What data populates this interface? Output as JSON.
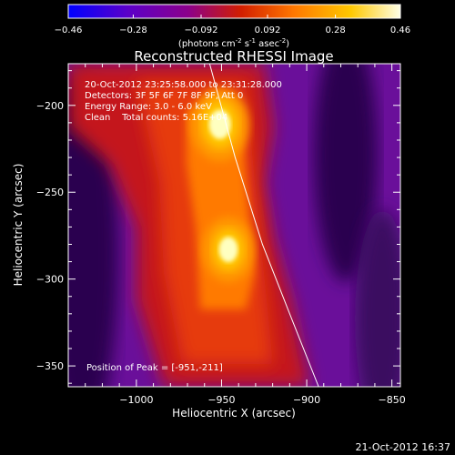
{
  "colorbar": {
    "ticks": [
      "-0.46",
      "-0.28",
      "-0.092",
      "0.092",
      "0.28",
      "0.46"
    ],
    "unit_main": "(photons cm",
    "unit_exp1": "-2",
    "unit_mid": " s",
    "unit_exp2": "-1",
    "unit_mid2": " asec",
    "unit_exp3": "-2",
    "unit_end": ")"
  },
  "annotations": {
    "time_range": "20-Oct-2012 23:25:58.000 to 23:31:28.000",
    "detectors": "Detectors: 3F 5F 6F 7F 8F 9F, Att 0",
    "energy": "Energy Range: 3.0 - 6.0 keV",
    "clean": "Clean    Total counts: 5.16E+04",
    "peak": "Position of Peak = [-951,-211]",
    "date_stamp": "21-Oct-2012 16:37"
  },
  "chart_data": {
    "type": "heatmap",
    "title": "Reconstructed RHESSI Image",
    "xlabel": "Heliocentric X (arcsec)",
    "ylabel": "Heliocentric Y (arcsec)",
    "xlim": [
      -1040,
      -845
    ],
    "ylim": [
      -362,
      -176
    ],
    "x_ticks": [
      -1000,
      -950,
      -900,
      -850
    ],
    "y_ticks": [
      -200,
      -250,
      -300,
      -350
    ],
    "x_tick_labels": [
      "−1000",
      "−950",
      "−900",
      "−850"
    ],
    "y_tick_labels": [
      "−200",
      "−250",
      "−300",
      "−350"
    ],
    "color_range": [
      -0.46,
      0.46
    ],
    "colormap": [
      "#0000ff",
      "#5b00c8",
      "#8b008b",
      "#d21e00",
      "#ff7800",
      "#ffc800",
      "#ffffc8"
    ],
    "sources": [
      {
        "x": -951,
        "y": -211,
        "peak": 0.46
      },
      {
        "x": -946,
        "y": -283,
        "peak": 0.4
      }
    ],
    "limb_curve": [
      [
        -957,
        -176
      ],
      [
        -942,
        -230
      ],
      [
        -926,
        -280
      ],
      [
        -910,
        -320
      ],
      [
        -893,
        -362
      ]
    ]
  }
}
